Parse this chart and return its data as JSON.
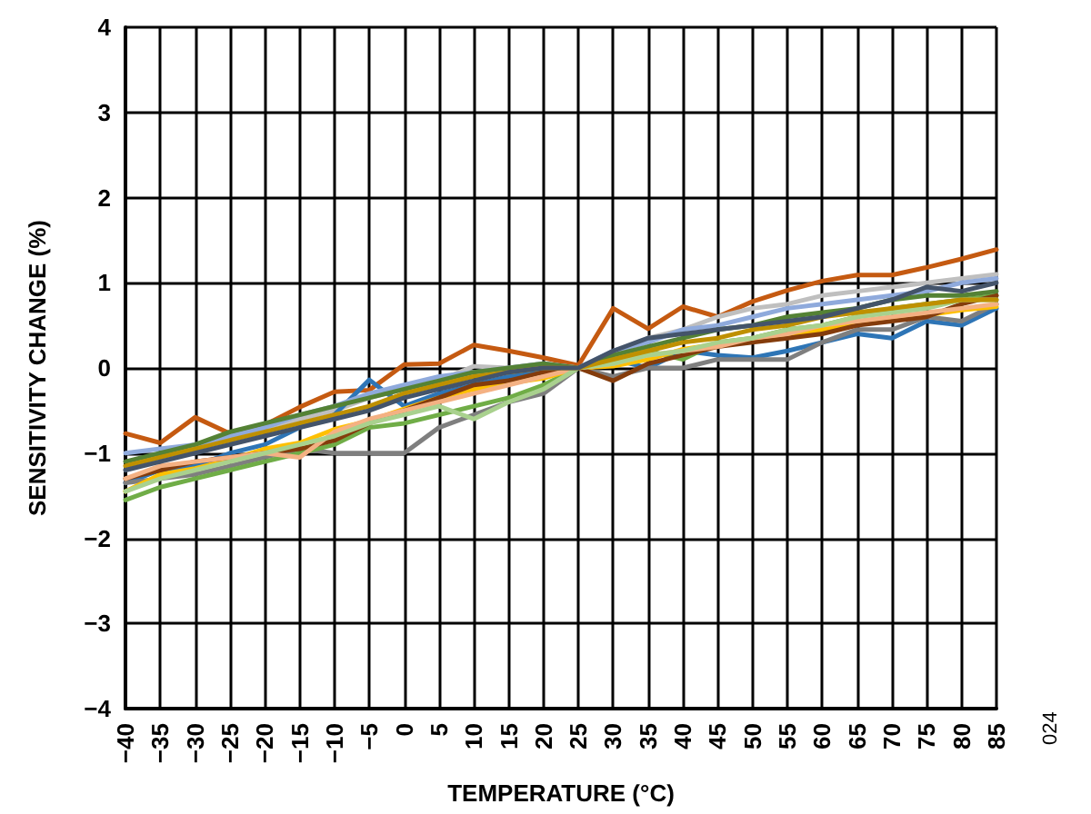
{
  "chart_data": {
    "type": "line",
    "xlabel": "TEMPERATURE (°C)",
    "ylabel": "SENSITIVITY CHANGE (%)",
    "annotations": [
      "024"
    ],
    "x": [
      -40,
      -35,
      -30,
      -25,
      -20,
      -15,
      -10,
      -5,
      0,
      5,
      10,
      15,
      20,
      25,
      30,
      35,
      40,
      45,
      50,
      55,
      60,
      65,
      70,
      75,
      80,
      85
    ],
    "xlim": [
      -40,
      85
    ],
    "xticks": [
      {
        "value": -40,
        "label": "−40"
      },
      {
        "value": -35,
        "label": "−35"
      },
      {
        "value": -30,
        "label": "−30"
      },
      {
        "value": -25,
        "label": "−25"
      },
      {
        "value": -20,
        "label": "−20"
      },
      {
        "value": -15,
        "label": "−15"
      },
      {
        "value": -10,
        "label": "−10"
      },
      {
        "value": -5,
        "label": "−5"
      },
      0,
      5,
      10,
      15,
      20,
      25,
      30,
      35,
      40,
      45,
      50,
      55,
      60,
      65,
      70,
      75,
      80,
      85
    ],
    "ylim": [
      -4,
      4
    ],
    "yticks": [
      {
        "value": -4,
        "label": "−4"
      },
      {
        "value": -3,
        "label": "−3"
      },
      {
        "value": -2,
        "label": "−2"
      },
      {
        "value": -1,
        "label": "−1"
      },
      0,
      1,
      2,
      3,
      4
    ],
    "grid": true,
    "marker": "none",
    "line_style": "solid",
    "series": [
      {
        "color": "#c55a11",
        "values": [
          -0.77,
          -0.88,
          -0.58,
          -0.77,
          -0.67,
          -0.46,
          -0.28,
          -0.26,
          0.04,
          0.05,
          0.27,
          0.2,
          0.12,
          0.03,
          0.7,
          0.46,
          0.72,
          0.6,
          0.78,
          0.91,
          1.02,
          1.09,
          1.09,
          1.18,
          1.28,
          1.39
        ]
      },
      {
        "color": "#bfbfbf",
        "values": [
          -1.2,
          -1.05,
          -0.95,
          -0.85,
          -0.7,
          -0.6,
          -0.5,
          -0.35,
          -0.25,
          -0.15,
          0.02,
          0.0,
          0.05,
          0.0,
          0.15,
          0.35,
          0.45,
          0.6,
          0.7,
          0.75,
          0.85,
          0.9,
          0.95,
          1.0,
          1.05,
          1.1
        ]
      },
      {
        "color": "#2e75b6",
        "values": [
          -1.35,
          -1.2,
          -1.15,
          -1.0,
          -0.9,
          -0.7,
          -0.55,
          -0.14,
          -0.45,
          -0.3,
          -0.2,
          -0.1,
          -0.05,
          0.0,
          0.1,
          0.0,
          0.2,
          0.15,
          0.12,
          0.2,
          0.3,
          0.4,
          0.35,
          0.55,
          0.5,
          0.7
        ]
      },
      {
        "color": "#7f7f7f",
        "values": [
          -1.35,
          -1.3,
          -1.25,
          -1.15,
          -1.05,
          -0.95,
          -1.0,
          -1.0,
          -1.0,
          -0.7,
          -0.55,
          -0.4,
          -0.3,
          0.0,
          -0.1,
          0.0,
          0.0,
          0.1,
          0.1,
          0.1,
          0.3,
          0.45,
          0.45,
          0.6,
          0.55,
          0.75
        ]
      },
      {
        "color": "#70ad47",
        "values": [
          -1.55,
          -1.4,
          -1.3,
          -1.2,
          -1.1,
          -1.0,
          -0.9,
          -0.7,
          -0.65,
          -0.55,
          -0.45,
          -0.35,
          -0.2,
          0.0,
          0.1,
          0.2,
          0.1,
          0.3,
          0.35,
          0.45,
          0.5,
          0.6,
          0.7,
          0.75,
          0.8,
          0.85
        ]
      },
      {
        "color": "#8faadc",
        "values": [
          -1.0,
          -0.95,
          -0.9,
          -0.8,
          -0.7,
          -0.55,
          -0.45,
          -0.3,
          -0.2,
          -0.1,
          -0.05,
          0.0,
          0.05,
          0.0,
          0.2,
          0.3,
          0.45,
          0.5,
          0.6,
          0.7,
          0.75,
          0.8,
          0.85,
          0.9,
          1.0,
          1.05
        ]
      },
      {
        "color": "#ffc000",
        "values": [
          -1.45,
          -1.25,
          -1.18,
          -1.08,
          -0.95,
          -0.88,
          -0.72,
          -0.62,
          -0.48,
          -0.35,
          -0.25,
          -0.18,
          -0.12,
          0.0,
          0.02,
          0.1,
          0.22,
          0.28,
          0.32,
          0.38,
          0.45,
          0.52,
          0.58,
          0.62,
          0.68,
          0.72
        ]
      },
      {
        "color": "#843c0c",
        "values": [
          -1.3,
          -1.2,
          -1.1,
          -1.05,
          -1.0,
          -0.95,
          -0.85,
          -0.65,
          -0.5,
          -0.35,
          -0.2,
          -0.15,
          -0.05,
          0.0,
          -0.15,
          0.05,
          0.15,
          0.25,
          0.3,
          0.35,
          0.4,
          0.5,
          0.55,
          0.6,
          0.75,
          0.85
        ]
      },
      {
        "color": "#f4b183",
        "values": [
          -1.3,
          -1.15,
          -1.1,
          -1.05,
          -1.0,
          -1.05,
          -0.75,
          -0.6,
          -0.5,
          -0.4,
          -0.3,
          -0.2,
          -0.1,
          0.0,
          0.05,
          0.15,
          0.2,
          0.25,
          0.35,
          0.4,
          0.5,
          0.55,
          0.6,
          0.65,
          0.7,
          0.75
        ]
      },
      {
        "color": "#548235",
        "values": [
          -1.1,
          -1.0,
          -0.9,
          -0.75,
          -0.65,
          -0.55,
          -0.45,
          -0.35,
          -0.25,
          -0.15,
          -0.05,
          0.0,
          0.05,
          0.0,
          0.15,
          0.25,
          0.35,
          0.45,
          0.5,
          0.6,
          0.65,
          0.7,
          0.8,
          0.85,
          0.85,
          0.9
        ]
      },
      {
        "color": "#a9d18e",
        "values": [
          -1.45,
          -1.3,
          -1.2,
          -1.1,
          -1.0,
          -0.9,
          -0.8,
          -0.65,
          -0.55,
          -0.45,
          -0.6,
          -0.4,
          -0.25,
          0.0,
          0.05,
          0.15,
          0.2,
          0.3,
          0.35,
          0.45,
          0.5,
          0.6,
          0.65,
          0.7,
          0.8,
          0.8
        ]
      },
      {
        "color": "#bf9000",
        "values": [
          -1.15,
          -1.05,
          -0.95,
          -0.85,
          -0.75,
          -0.65,
          -0.55,
          -0.45,
          -0.3,
          -0.2,
          -0.1,
          -0.05,
          0.0,
          0.0,
          0.1,
          0.2,
          0.3,
          0.35,
          0.45,
          0.5,
          0.6,
          0.65,
          0.7,
          0.75,
          0.8,
          0.8
        ]
      },
      {
        "color": "#44546a",
        "values": [
          -1.2,
          -1.1,
          -1.0,
          -0.9,
          -0.8,
          -0.7,
          -0.6,
          -0.5,
          -0.35,
          -0.25,
          -0.15,
          -0.05,
          0.0,
          0.0,
          0.2,
          0.35,
          0.4,
          0.45,
          0.5,
          0.55,
          0.6,
          0.7,
          0.8,
          0.95,
          0.9,
          1.0
        ]
      }
    ]
  }
}
